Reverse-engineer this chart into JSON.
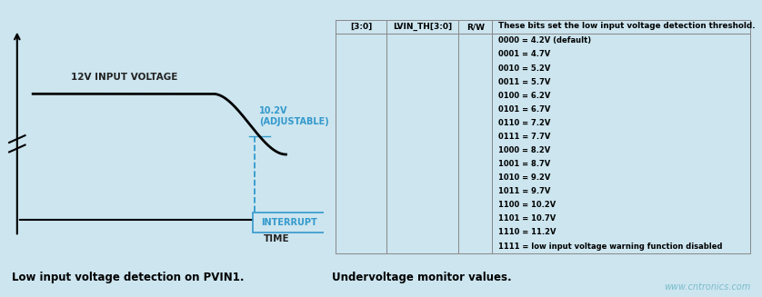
{
  "bg_color": "#cce5ef",
  "title_left": "Low input voltage detection on PVIN1.",
  "title_right": "Undervoltage monitor values.",
  "watermark": "www.cntronics.com",
  "waveform_label": "12V INPUT VOLTAGE",
  "threshold_label": "10.2V\n(ADJUSTABLE)",
  "interrupt_label": "INTERRUPT",
  "time_label": "TIME",
  "table_headers": [
    "[3:0]",
    "LVIN_TH[3:0]",
    "R/W"
  ],
  "table_header_desc": "These bits set the low input voltage detection threshold.",
  "table_rows": [
    "0000 = 4.2V (default)",
    "0001 = 4.7V",
    "0010 = 5.2V",
    "0011 = 5.7V",
    "0100 = 6.2V",
    "0101 = 6.7V",
    "0110 = 7.2V",
    "0111 = 7.7V",
    "1000 = 8.2V",
    "1001 = 8.7V",
    "1010 = 9.2V",
    "1011 = 9.7V",
    "1100 = 10.2V",
    "1101 = 10.7V",
    "1110 = 11.2V",
    "1111 = low input voltage warning function disabled"
  ],
  "line_color": "#000000",
  "dashed_color": "#3399cc",
  "interrupt_box_color": "#3399cc",
  "interrupt_text_color": "#3399cc",
  "threshold_text_color": "#3399cc",
  "axis_color": "#000000",
  "table_line_color": "#888888",
  "text_color_main": "#222222",
  "watermark_color": "#7bbccc"
}
